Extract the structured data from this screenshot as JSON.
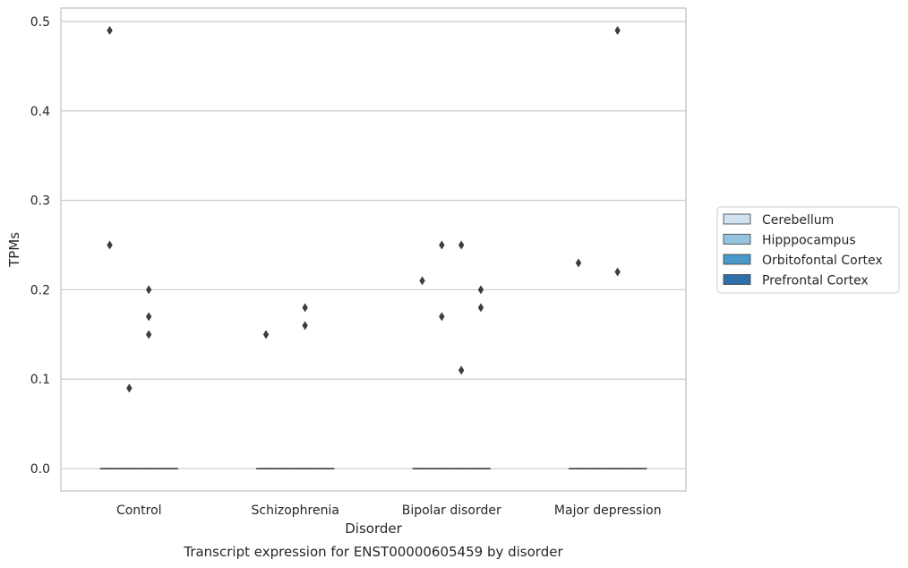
{
  "chart_data": {
    "type": "box",
    "title": "",
    "caption": "Transcript expression for ENST00000605459 by disorder",
    "xlabel": "Disorder",
    "ylabel": "TPMs",
    "ylim": [
      -0.025,
      0.515
    ],
    "yticks": [
      0.0,
      0.1,
      0.2,
      0.3,
      0.4,
      0.5
    ],
    "ytick_labels": [
      "0.0",
      "0.1",
      "0.2",
      "0.3",
      "0.4",
      "0.5"
    ],
    "grid": true,
    "legend_position": "right",
    "categories": [
      "Control",
      "Schizophrenia",
      "Bipolar disorder",
      "Major depression"
    ],
    "series": [
      {
        "name": "Cerebellum",
        "color": "#d0e1f2",
        "median": [
          0,
          0,
          0,
          0
        ],
        "outliers": [
          [
            0.49,
            0.25
          ],
          [
            0.15
          ],
          [
            0.21
          ],
          [
            0.23
          ]
        ]
      },
      {
        "name": "Hipppocampus",
        "color": "#94c4df",
        "median": [
          0,
          0,
          0,
          0
        ],
        "outliers": [
          [
            0.09
          ],
          [],
          [
            0.25,
            0.17
          ],
          []
        ]
      },
      {
        "name": "Orbitofontal Cortex",
        "color": "#4a98c9",
        "median": [
          0,
          0,
          0,
          0
        ],
        "outliers": [
          [
            0.2,
            0.17,
            0.15
          ],
          [
            0.18,
            0.16
          ],
          [
            0.25,
            0.11
          ],
          [
            0.49,
            0.22
          ]
        ]
      },
      {
        "name": "Prefrontal Cortex",
        "color": "#2e6ea9",
        "median": [
          0,
          0,
          0,
          0
        ],
        "outliers": [
          [],
          [],
          [
            0.2,
            0.18
          ],
          []
        ]
      }
    ]
  }
}
